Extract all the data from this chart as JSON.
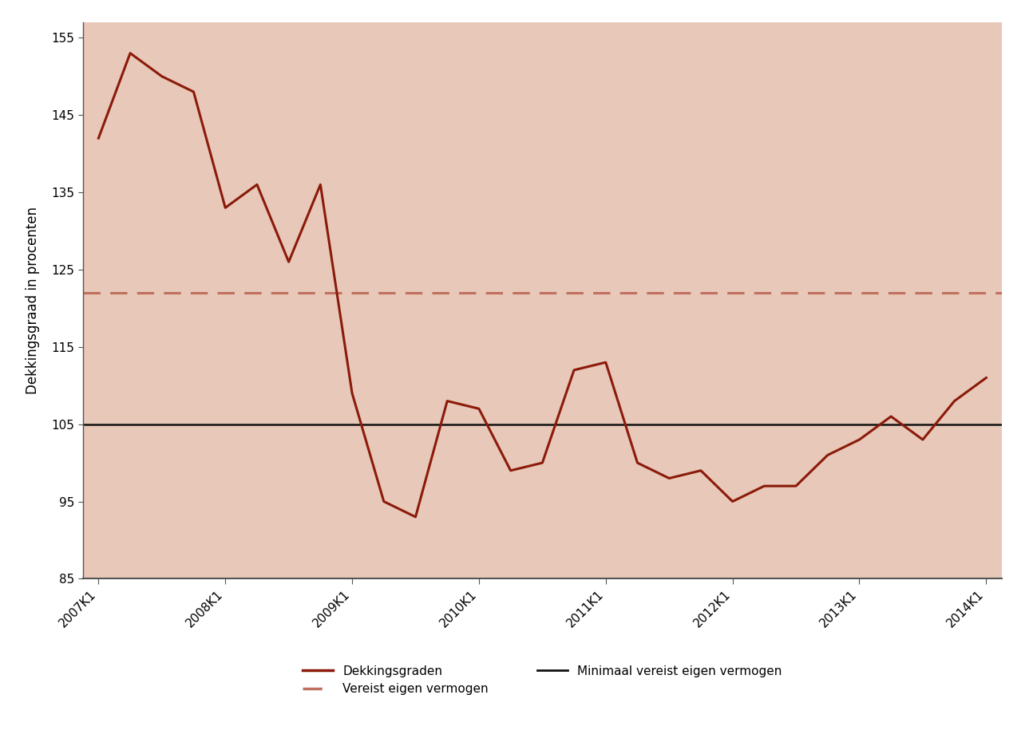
{
  "title": "",
  "ylabel": "Dekkingsgraad in procenten",
  "background_color": "#e8c8b8",
  "plot_bg_color": "#e8c8b8",
  "fig_bg_color": "#ffffff",
  "ylim": [
    85,
    157
  ],
  "yticks": [
    85,
    95,
    105,
    115,
    125,
    135,
    145,
    155
  ],
  "x_labels": [
    "2007K1",
    "2008K1",
    "2009K1",
    "2010K1",
    "2011K1",
    "2012K1",
    "2013K1",
    "2014K1"
  ],
  "x_tick_positions": [
    0,
    4,
    8,
    12,
    16,
    20,
    24,
    28
  ],
  "dekkingsgraden_x": [
    0,
    1,
    2,
    3,
    4,
    5,
    6,
    7,
    8,
    9,
    10,
    11,
    12,
    13,
    14,
    15,
    16,
    17,
    18,
    19,
    20,
    21,
    22,
    23,
    24,
    25,
    26,
    27,
    28
  ],
  "dekkingsgraden_y": [
    142,
    153,
    150,
    148,
    133,
    136,
    126,
    136,
    109,
    95,
    93,
    108,
    107,
    99,
    100,
    112,
    113,
    100,
    98,
    99,
    95,
    97,
    97,
    101,
    103,
    106,
    103,
    108,
    111
  ],
  "min_vereist_level": 105,
  "vereist_level": 122,
  "line_color": "#8b1a0a",
  "dashed_color": "#bf7060",
  "min_line_color": "#111111",
  "xlim": [
    -0.5,
    28.5
  ]
}
